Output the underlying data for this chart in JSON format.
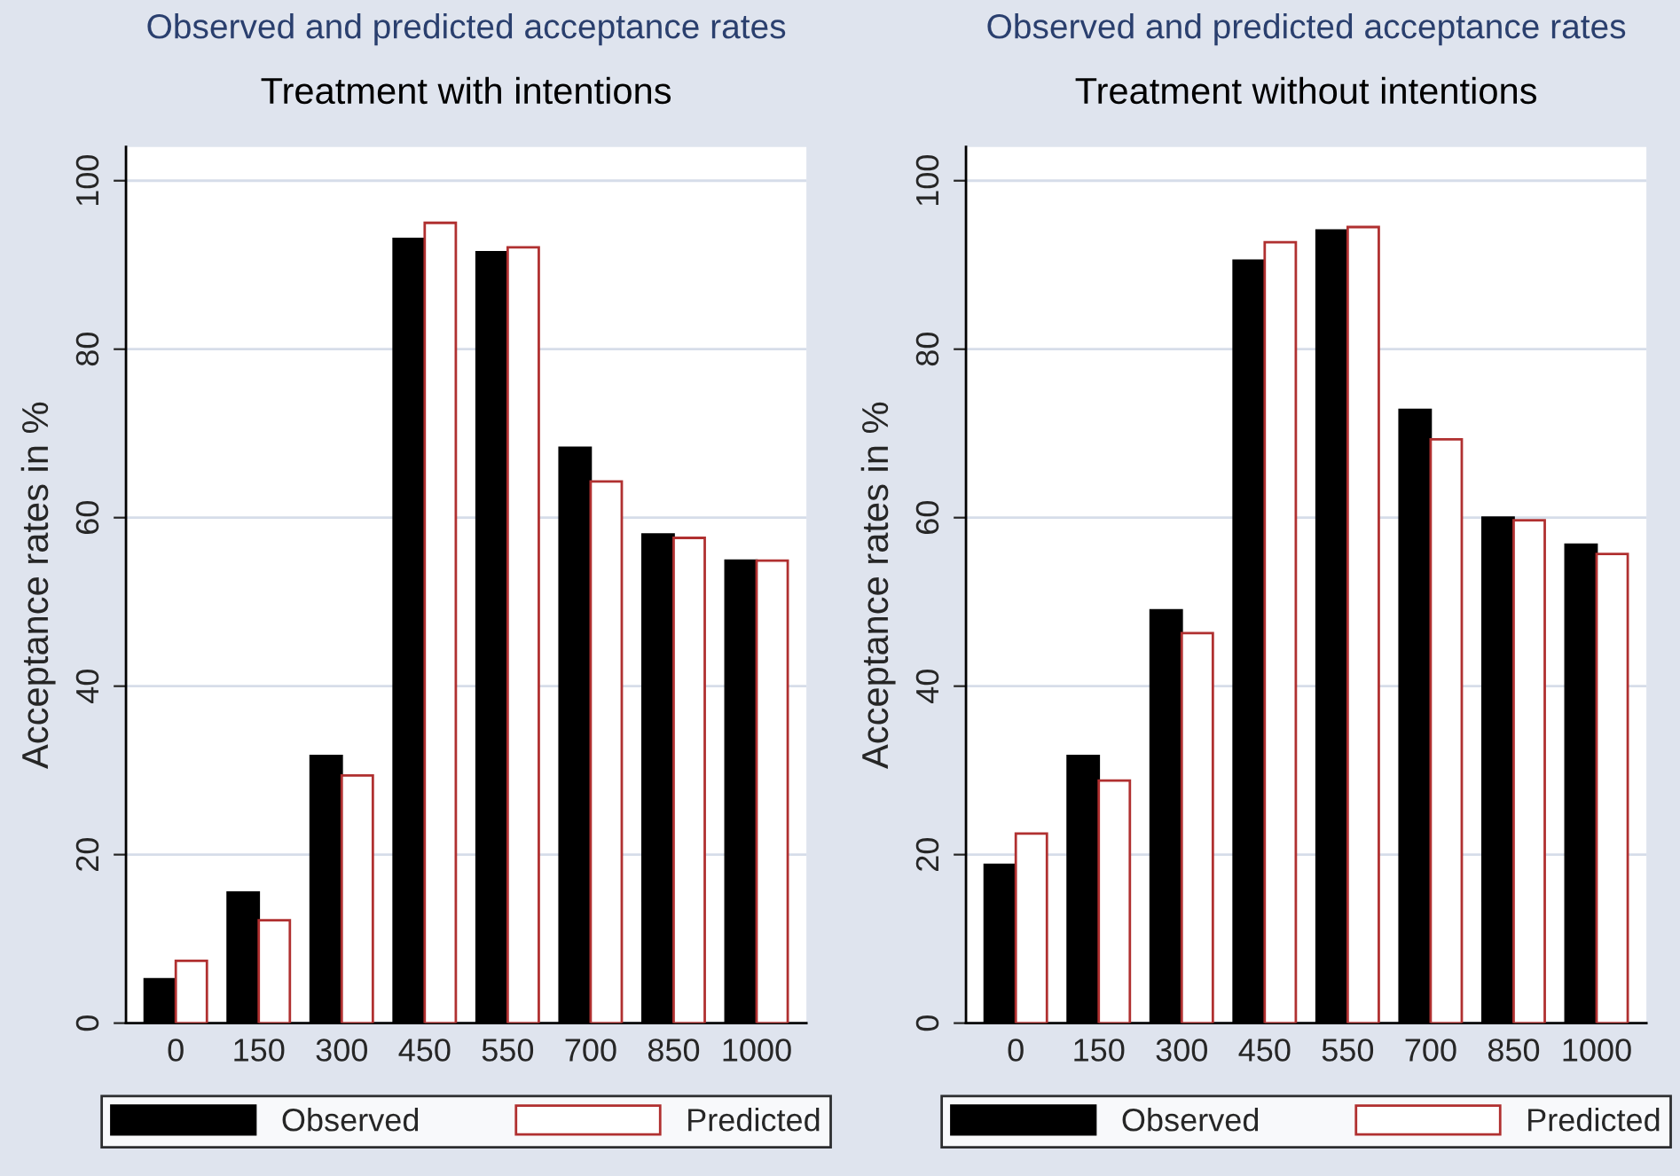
{
  "chart_data": [
    {
      "type": "bar",
      "title": "Observed and predicted acceptance rates",
      "subtitle": "Treatment with intentions",
      "ylabel": "Acceptance rates in %",
      "categories": [
        "0",
        "150",
        "300",
        "450",
        "550",
        "700",
        "850",
        "1000"
      ],
      "series": [
        {
          "name": "Observed",
          "color": "#000000",
          "values": [
            5.2,
            15.5,
            31.7,
            93.1,
            91.5,
            68.3,
            58.0,
            54.9
          ]
        },
        {
          "name": "Predicted",
          "color": "#b03030",
          "values": [
            7.4,
            12.2,
            29.4,
            95.0,
            92.1,
            64.3,
            57.6,
            54.9
          ]
        }
      ],
      "ylim": [
        0,
        104
      ],
      "yticks": [
        0,
        20,
        40,
        60,
        80,
        100
      ],
      "grid": "y",
      "legend": "bottom"
    },
    {
      "type": "bar",
      "title": "Observed and predicted acceptance rates",
      "subtitle": "Treatment without intentions",
      "ylabel": "Acceptance rates in %",
      "categories": [
        "0",
        "150",
        "300",
        "450",
        "550",
        "700",
        "850",
        "1000"
      ],
      "series": [
        {
          "name": "Observed",
          "color": "#000000",
          "values": [
            18.8,
            31.7,
            49.0,
            90.5,
            94.1,
            72.8,
            60.0,
            56.8
          ]
        },
        {
          "name": "Predicted",
          "color": "#b03030",
          "values": [
            22.5,
            28.8,
            46.3,
            92.7,
            94.5,
            69.3,
            59.7,
            55.7
          ]
        }
      ],
      "ylim": [
        0,
        104
      ],
      "yticks": [
        0,
        20,
        40,
        60,
        80,
        100
      ],
      "grid": "y",
      "legend": "bottom"
    }
  ]
}
